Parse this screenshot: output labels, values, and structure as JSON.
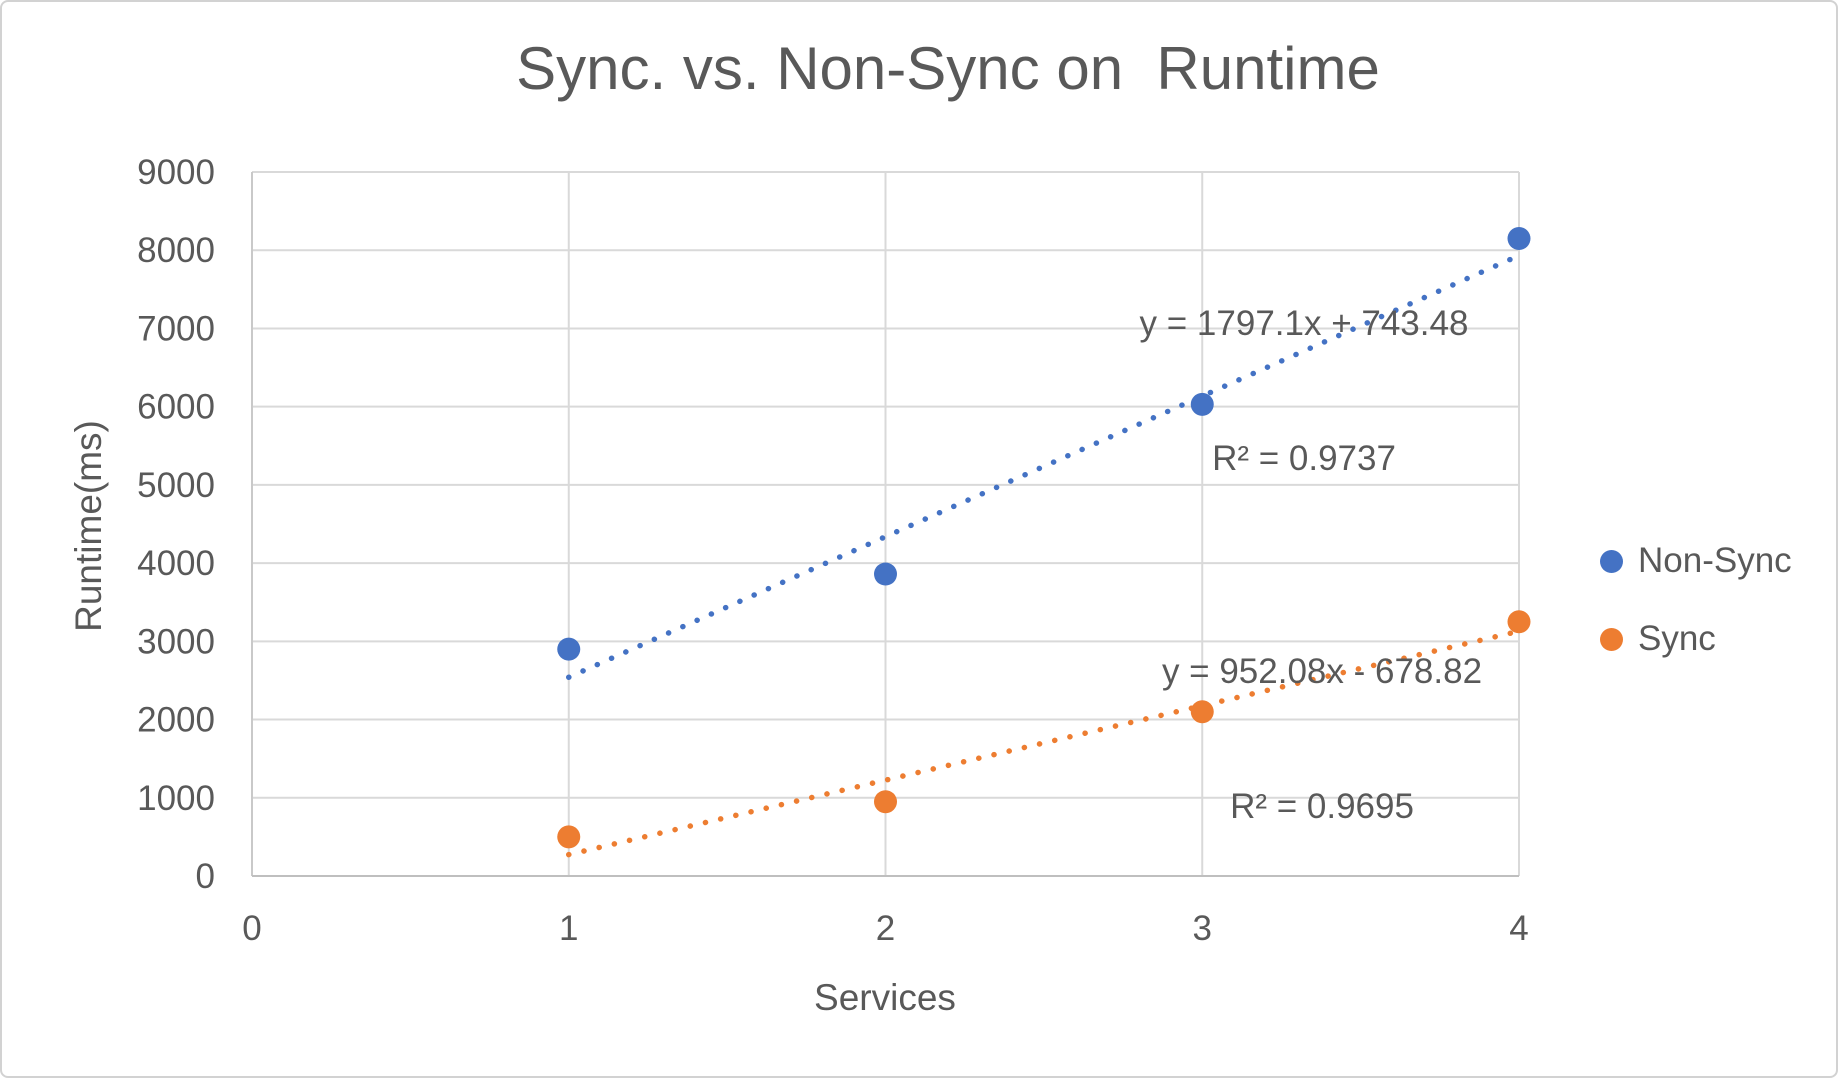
{
  "window": {
    "background": "#ffffff",
    "border_color": "#d2d2d2"
  },
  "chart_data": {
    "type": "scatter",
    "title": "Sync. vs. Non-Sync on  Runtime",
    "xlabel": "Services",
    "ylabel": "Runtime(ms)",
    "xlim": [
      0,
      4
    ],
    "ylim": [
      0,
      9000
    ],
    "x_ticks": [
      0,
      1,
      2,
      3,
      4
    ],
    "y_ticks": [
      0,
      1000,
      2000,
      3000,
      4000,
      5000,
      6000,
      7000,
      8000,
      9000
    ],
    "grid": true,
    "legend_position": "right",
    "text_color": "#595959",
    "gridline_color": "#D9D9D9",
    "axis_line_color": "#BFBFBF",
    "series": [
      {
        "name": "Non-Sync",
        "color": "#4472C4",
        "x": [
          1,
          2,
          3,
          4
        ],
        "y": [
          2900,
          3860,
          6030,
          8150
        ],
        "trendline": {
          "type": "linear",
          "style": "dotted",
          "slope": 1797.1,
          "intercept": 743.48,
          "r2": 0.9737,
          "equation_label": "y = 1797.1x + 743.48",
          "r2_label": "R² = 0.9737"
        }
      },
      {
        "name": "Sync",
        "color": "#ED7D31",
        "x": [
          1,
          2,
          3,
          4
        ],
        "y": [
          500,
          950,
          2100,
          3250
        ],
        "trendline": {
          "type": "linear",
          "style": "dotted",
          "slope": 952.08,
          "intercept": -678.82,
          "r2": 0.9695,
          "equation_label": "y = 952.08x - 678.82",
          "r2_label": "R² = 0.9695"
        }
      }
    ]
  }
}
